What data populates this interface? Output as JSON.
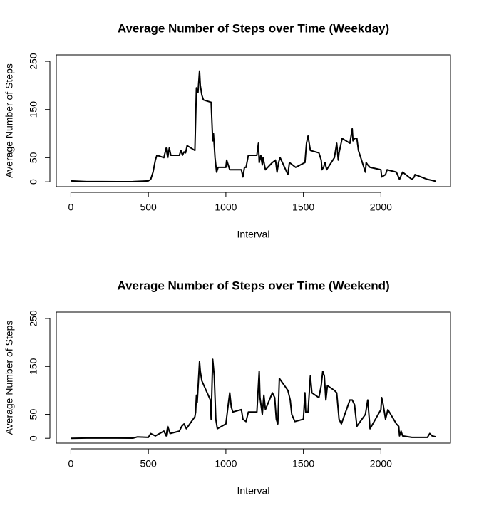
{
  "chart_data": [
    {
      "type": "line",
      "title": "Average Number of Steps over Time (Weekday)",
      "xlabel": "Interval",
      "ylabel": "Average Number of Steps",
      "color": "#000000",
      "x": [
        0,
        100,
        200,
        300,
        400,
        500,
        515,
        530,
        545,
        555,
        600,
        615,
        625,
        635,
        645,
        700,
        710,
        720,
        730,
        740,
        750,
        800,
        810,
        820,
        830,
        835,
        845,
        855,
        905,
        915,
        920,
        930,
        940,
        950,
        1000,
        1005,
        1015,
        1025,
        1100,
        1110,
        1120,
        1130,
        1145,
        1200,
        1210,
        1215,
        1225,
        1235,
        1240,
        1255,
        1300,
        1320,
        1330,
        1340,
        1350,
        1400,
        1410,
        1430,
        1450,
        1510,
        1520,
        1530,
        1545,
        1600,
        1615,
        1620,
        1630,
        1640,
        1650,
        1700,
        1715,
        1725,
        1730,
        1740,
        1750,
        1800,
        1815,
        1820,
        1830,
        1845,
        1855,
        1900,
        1905,
        1915,
        1930,
        2000,
        2005,
        2030,
        2040,
        2100,
        2120,
        2140,
        2200,
        2215,
        2220,
        2300,
        2330,
        2355
      ],
      "values": [
        2,
        0.5,
        0.5,
        0.3,
        0.5,
        2,
        5,
        20,
        45,
        55,
        50,
        70,
        50,
        70,
        55,
        55,
        65,
        55,
        62,
        60,
        75,
        65,
        195,
        185,
        230,
        200,
        180,
        170,
        165,
        85,
        100,
        50,
        20,
        30,
        30,
        45,
        35,
        25,
        25,
        10,
        30,
        30,
        55,
        55,
        80,
        40,
        55,
        35,
        50,
        25,
        40,
        45,
        20,
        40,
        50,
        15,
        40,
        35,
        30,
        40,
        80,
        95,
        65,
        60,
        45,
        25,
        30,
        40,
        25,
        50,
        80,
        45,
        60,
        75,
        90,
        80,
        110,
        85,
        90,
        90,
        65,
        20,
        40,
        35,
        30,
        25,
        10,
        15,
        25,
        20,
        5,
        20,
        5,
        10,
        15,
        5,
        3,
        1
      ],
      "xlim": [
        -94,
        2449
      ],
      "ylim": [
        -10.1,
        263.4
      ],
      "xticks": [
        0,
        500,
        1000,
        1500,
        2000
      ],
      "yticks": [
        0,
        50,
        150,
        250
      ]
    },
    {
      "type": "line",
      "title": "Average Number of Steps over Time (Weekend)",
      "xlabel": "Interval",
      "ylabel": "Average Number of Steps",
      "color": "#000000",
      "x": [
        0,
        100,
        200,
        300,
        400,
        430,
        500,
        515,
        545,
        600,
        615,
        625,
        640,
        700,
        715,
        730,
        745,
        800,
        805,
        810,
        815,
        830,
        835,
        845,
        900,
        905,
        915,
        925,
        935,
        945,
        1000,
        1015,
        1025,
        1035,
        1045,
        1100,
        1110,
        1130,
        1145,
        1200,
        1215,
        1220,
        1235,
        1245,
        1255,
        1300,
        1315,
        1325,
        1335,
        1345,
        1400,
        1415,
        1425,
        1445,
        1500,
        1510,
        1515,
        1530,
        1545,
        1555,
        1600,
        1615,
        1625,
        1635,
        1645,
        1655,
        1700,
        1715,
        1730,
        1745,
        1800,
        1815,
        1830,
        1845,
        1900,
        1915,
        1930,
        2000,
        2005,
        2015,
        2030,
        2045,
        2100,
        2115,
        2120,
        2130,
        2140,
        2200,
        2300,
        2315,
        2330,
        2355
      ],
      "values": [
        0,
        0.5,
        0.5,
        0.5,
        0.3,
        3,
        2,
        10,
        5,
        15,
        5,
        25,
        10,
        15,
        25,
        30,
        20,
        45,
        55,
        90,
        75,
        160,
        140,
        120,
        80,
        40,
        165,
        130,
        40,
        20,
        30,
        70,
        95,
        65,
        55,
        60,
        40,
        35,
        55,
        55,
        140,
        85,
        50,
        90,
        60,
        95,
        85,
        40,
        30,
        125,
        100,
        80,
        50,
        35,
        40,
        95,
        55,
        55,
        130,
        95,
        85,
        110,
        140,
        130,
        80,
        110,
        100,
        95,
        40,
        30,
        80,
        80,
        70,
        25,
        50,
        80,
        20,
        60,
        85,
        70,
        40,
        60,
        30,
        25,
        5,
        15,
        5,
        2,
        2,
        10,
        5,
        3
      ],
      "xlim": [
        -94,
        2449
      ],
      "ylim": [
        -10.1,
        263.4
      ],
      "xticks": [
        0,
        500,
        1000,
        1500,
        2000
      ],
      "yticks": [
        0,
        50,
        150,
        250
      ]
    }
  ]
}
